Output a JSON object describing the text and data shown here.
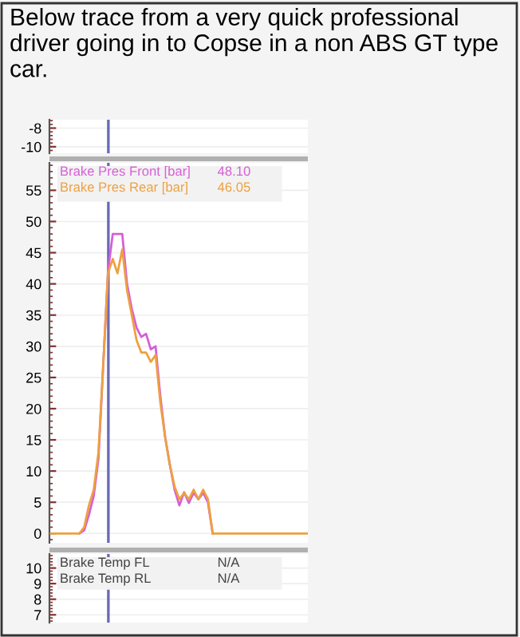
{
  "chart_data": [
    {
      "type": "line",
      "title": "Below trace from a very quick professional driver going in to Copse in a non ABS GT type car.",
      "categories": [
        null,
        null,
        null,
        null,
        null,
        null,
        null,
        null,
        null,
        null,
        null,
        null,
        null,
        null,
        null,
        null,
        null,
        null,
        null,
        null,
        null,
        null,
        null,
        null,
        null,
        null,
        null,
        null,
        null,
        null,
        null,
        null,
        null,
        null,
        null,
        null,
        null,
        null,
        null,
        null,
        null,
        null,
        null,
        null,
        null,
        null,
        null,
        null,
        null,
        null,
        null,
        null,
        null,
        null,
        null
      ],
      "ylim": [
        -10.7,
        -7.1
      ],
      "yticks": [
        -8,
        -10
      ],
      "tick_labels": "y",
      "grid": "y"
    },
    {
      "type": "line",
      "categories": [
        null,
        null,
        null,
        null,
        null,
        null,
        null,
        null,
        null,
        null,
        null,
        null,
        null,
        null,
        null,
        null,
        null,
        null,
        null,
        null,
        null,
        null,
        null,
        null,
        null,
        null,
        null,
        null,
        null,
        null,
        null,
        null,
        null,
        null,
        null,
        null,
        null,
        null,
        null,
        null,
        null,
        null,
        null,
        null,
        null,
        null,
        null,
        null,
        null,
        null,
        null,
        null,
        null,
        null,
        null
      ],
      "series": [
        {
          "name": "Brake Pres Front [bar]",
          "color": "#d65fd6",
          "values": [
            null,
            null,
            null,
            null,
            null,
            null,
            0,
            0.5,
            3,
            6,
            12,
            27,
            42,
            48,
            48,
            48,
            40,
            36,
            33,
            31.5,
            32,
            29.5,
            30,
            22,
            15.5,
            11,
            7,
            4.5,
            6.6,
            4.9,
            6.5,
            5.5,
            6.5,
            5,
            0,
            null,
            null,
            null,
            null,
            null,
            null,
            null,
            null,
            null,
            null,
            null,
            null,
            null,
            null,
            null,
            null,
            null,
            null,
            null,
            null
          ]
        },
        {
          "name": "Brake Pres Rear [bar]",
          "color": "#eea040",
          "values": [
            0,
            0,
            0,
            0,
            0,
            0,
            0,
            1,
            4.5,
            7,
            13,
            27,
            41.7,
            44,
            41.7,
            45.5,
            39,
            35,
            31,
            29,
            29,
            27.5,
            28.6,
            21,
            15.5,
            11,
            7.5,
            5.5,
            6.5,
            5.5,
            7,
            5.5,
            7,
            5.5,
            0,
            0,
            0,
            0,
            0,
            0,
            0,
            0,
            0,
            0,
            0,
            0,
            0,
            0,
            0,
            0,
            0,
            0,
            0,
            0,
            0
          ]
        }
      ],
      "annotations": [
        "48.10",
        "46.05"
      ],
      "ylim": [
        -1.5,
        59.4
      ],
      "yticks": [
        0,
        5,
        10,
        15,
        20,
        25,
        30,
        35,
        40,
        45,
        50,
        55
      ],
      "tick_labels": "y",
      "grid": "y",
      "legend": "top left"
    },
    {
      "type": "line",
      "categories": [
        null,
        null,
        null,
        null,
        null,
        null,
        null,
        null,
        null,
        null,
        null,
        null,
        null,
        null,
        null,
        null,
        null,
        null,
        null,
        null,
        null,
        null,
        null,
        null,
        null,
        null,
        null,
        null,
        null,
        null,
        null,
        null,
        null,
        null,
        null,
        null,
        null,
        null,
        null,
        null,
        null,
        null,
        null,
        null,
        null,
        null,
        null,
        null,
        null,
        null,
        null,
        null,
        null,
        null,
        null
      ],
      "series": [
        {
          "name": "Brake Temp FL",
          "color": "#444444",
          "values": [
            null,
            null,
            null,
            null,
            null,
            null,
            null,
            null,
            null,
            null,
            null,
            null,
            null,
            null,
            null,
            null,
            null,
            null,
            null,
            null,
            null,
            null,
            null,
            null,
            null,
            null,
            null,
            null,
            null,
            null,
            null,
            null,
            null,
            null,
            null,
            null,
            null,
            null,
            null,
            null,
            null,
            null,
            null,
            null,
            null,
            null,
            null,
            null,
            null,
            null,
            null,
            null,
            null,
            null,
            null
          ]
        },
        {
          "name": "Brake Temp RL",
          "color": "#444444",
          "values": [
            null,
            null,
            null,
            null,
            null,
            null,
            null,
            null,
            null,
            null,
            null,
            null,
            null,
            null,
            null,
            null,
            null,
            null,
            null,
            null,
            null,
            null,
            null,
            null,
            null,
            null,
            null,
            null,
            null,
            null,
            null,
            null,
            null,
            null,
            null,
            null,
            null,
            null,
            null,
            null,
            null,
            null,
            null,
            null,
            null,
            null,
            null,
            null,
            null,
            null,
            null,
            null,
            null,
            null,
            null
          ]
        }
      ],
      "annotations": [
        "N/A",
        "N/A"
      ],
      "ylim": [
        6.5,
        10.9
      ],
      "yticks": [
        7,
        8,
        9,
        10
      ],
      "tick_labels": "y",
      "grid": "y"
    }
  ]
}
